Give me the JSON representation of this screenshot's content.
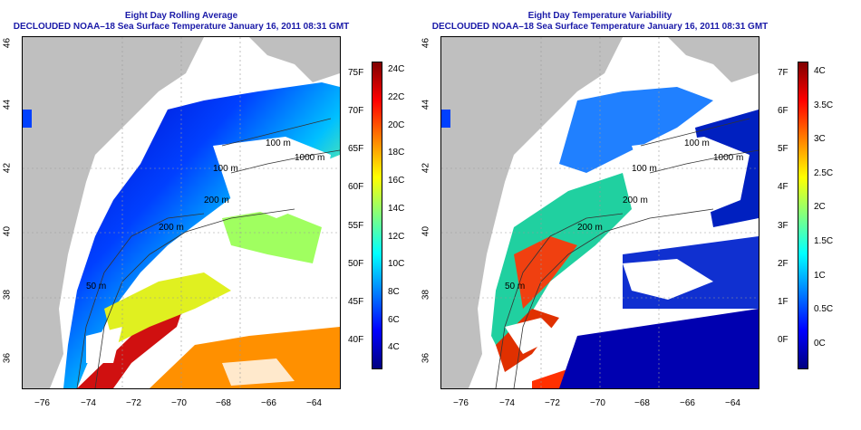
{
  "left_panel": {
    "title_line1": "Eight Day Rolling Average",
    "title_line2": "DECLOUDED NOAA–18 Sea Surface Temperature January 16, 2011 08:31 GMT",
    "colorbar_fahrenheit": [
      "75F",
      "70F",
      "65F",
      "60F",
      "55F",
      "50F",
      "45F",
      "40F"
    ],
    "colorbar_celsius": [
      "24C",
      "22C",
      "20C",
      "18C",
      "16C",
      "14C",
      "12C",
      "10C",
      "8C",
      "6C",
      "4C"
    ],
    "contour_labels": [
      "100 m",
      "1000 m",
      "200 m",
      "100 m",
      "50 m",
      "200 m"
    ],
    "colors": [
      "#00007f",
      "#0000ff",
      "#0080ff",
      "#00ffff",
      "#80ff80",
      "#ffff00",
      "#ff8000",
      "#ff0000",
      "#7f0000"
    ]
  },
  "right_panel": {
    "title_line1": "Eight Day Temperature Variability",
    "title_line2": "DECLOUDED NOAA–18 Sea Surface Temperature January 16, 2011 08:31 GMT",
    "colorbar_fahrenheit": [
      "7F",
      "6F",
      "5F",
      "4F",
      "3F",
      "2F",
      "1F",
      "0F"
    ],
    "colorbar_celsius": [
      "4C",
      "3.5C",
      "3C",
      "2.5C",
      "2C",
      "1.5C",
      "1C",
      "0.5C",
      "0C"
    ],
    "contour_labels": [
      "100 m",
      "1000 m",
      "200 m",
      "100 m",
      "50 m",
      "200 m"
    ]
  },
  "axes": {
    "x_ticks": [
      "−76",
      "−74",
      "−72",
      "−70",
      "−68",
      "−66",
      "−64"
    ],
    "y_ticks": [
      "46",
      "44",
      "42",
      "40",
      "38",
      "36"
    ]
  },
  "land_color": "#bfbfbf"
}
